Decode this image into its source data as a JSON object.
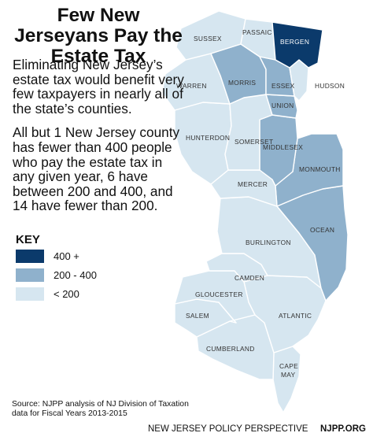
{
  "title": "Few New Jerseyans Pay the Estate Tax",
  "description": [
    "Eliminating New Jersey’s estate tax would benefit very few taxpayers in nearly all of the state’s counties.",
    "All but 1 New Jersey county has fewer than 400 people who pay the estate tax in any given year, 6 have between 200 and 400, and 14 have fewer than 200."
  ],
  "key": {
    "title": "KEY",
    "items": [
      {
        "label": "400 +",
        "category": "high",
        "color": "#0b3a6b"
      },
      {
        "label": "200 - 400",
        "category": "mid",
        "color": "#8fb1cc"
      },
      {
        "label": "< 200",
        "category": "low",
        "color": "#d6e6f0"
      }
    ]
  },
  "counties": [
    {
      "name": "SUSSEX",
      "category": "low"
    },
    {
      "name": "PASSAIC",
      "category": "low"
    },
    {
      "name": "BERGEN",
      "category": "high"
    },
    {
      "name": "WARREN",
      "category": "low"
    },
    {
      "name": "MORRIS",
      "category": "mid"
    },
    {
      "name": "ESSEX",
      "category": "mid"
    },
    {
      "name": "HUDSON",
      "category": "low"
    },
    {
      "name": "UNION",
      "category": "mid"
    },
    {
      "name": "HUNTERDON",
      "category": "low"
    },
    {
      "name": "SOMERSET",
      "category": "low"
    },
    {
      "name": "MIDDLESEX",
      "category": "mid"
    },
    {
      "name": "MERCER",
      "category": "low"
    },
    {
      "name": "MONMOUTH",
      "category": "mid"
    },
    {
      "name": "OCEAN",
      "category": "mid"
    },
    {
      "name": "BURLINGTON",
      "category": "low"
    },
    {
      "name": "CAMDEN",
      "category": "low"
    },
    {
      "name": "GLOUCESTER",
      "category": "low"
    },
    {
      "name": "SALEM",
      "category": "low"
    },
    {
      "name": "ATLANTIC",
      "category": "low"
    },
    {
      "name": "CUMBERLAND",
      "category": "low"
    },
    {
      "name": "CAPE MAY",
      "category": "low"
    }
  ],
  "source": "Source: NJPP analysis of NJ Division of Taxation data for Fiscal Years 2013-2015",
  "footer": {
    "org": "NEW JERSEY POLICY PERSPECTIVE",
    "site": "NJPP.ORG"
  }
}
